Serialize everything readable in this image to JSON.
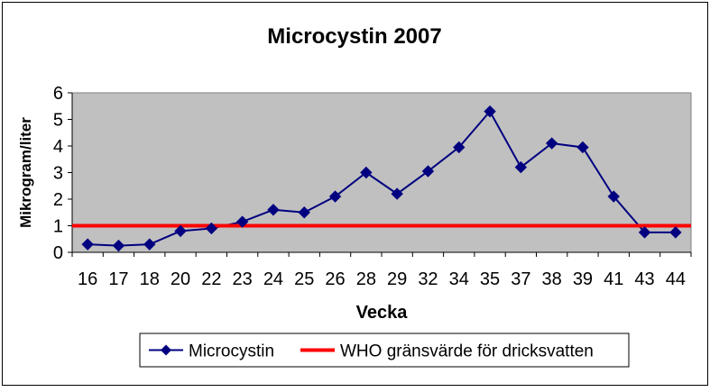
{
  "chart_data": {
    "type": "line",
    "title": "Microcystin 2007",
    "xlabel": "Vecka",
    "ylabel": "Mikrogram/liter",
    "ylim": [
      0,
      6
    ],
    "yticks": [
      "0",
      "1",
      "2",
      "3",
      "4",
      "5",
      "6"
    ],
    "categories": [
      "16",
      "17",
      "18",
      "20",
      "22",
      "23",
      "24",
      "25",
      "26",
      "28",
      "29",
      "32",
      "34",
      "35",
      "37",
      "38",
      "39",
      "41",
      "43",
      "44"
    ],
    "grid": false,
    "legend": "bottom",
    "series": [
      {
        "name": "Microcystin",
        "color": "#000080",
        "marker": "diamond",
        "values": [
          0.3,
          0.25,
          0.3,
          0.8,
          0.9,
          1.15,
          1.6,
          1.5,
          2.1,
          3.0,
          2.2,
          3.05,
          3.95,
          5.3,
          3.2,
          4.1,
          3.95,
          2.1,
          0.75,
          0.75
        ]
      },
      {
        "name": "WHO gränsvärde för dricksvatten",
        "color": "#ff0000",
        "marker": "none",
        "values": [
          1,
          1,
          1,
          1,
          1,
          1,
          1,
          1,
          1,
          1,
          1,
          1,
          1,
          1,
          1,
          1,
          1,
          1,
          1,
          1
        ]
      }
    ],
    "plot_background": "#c0c0c0"
  }
}
